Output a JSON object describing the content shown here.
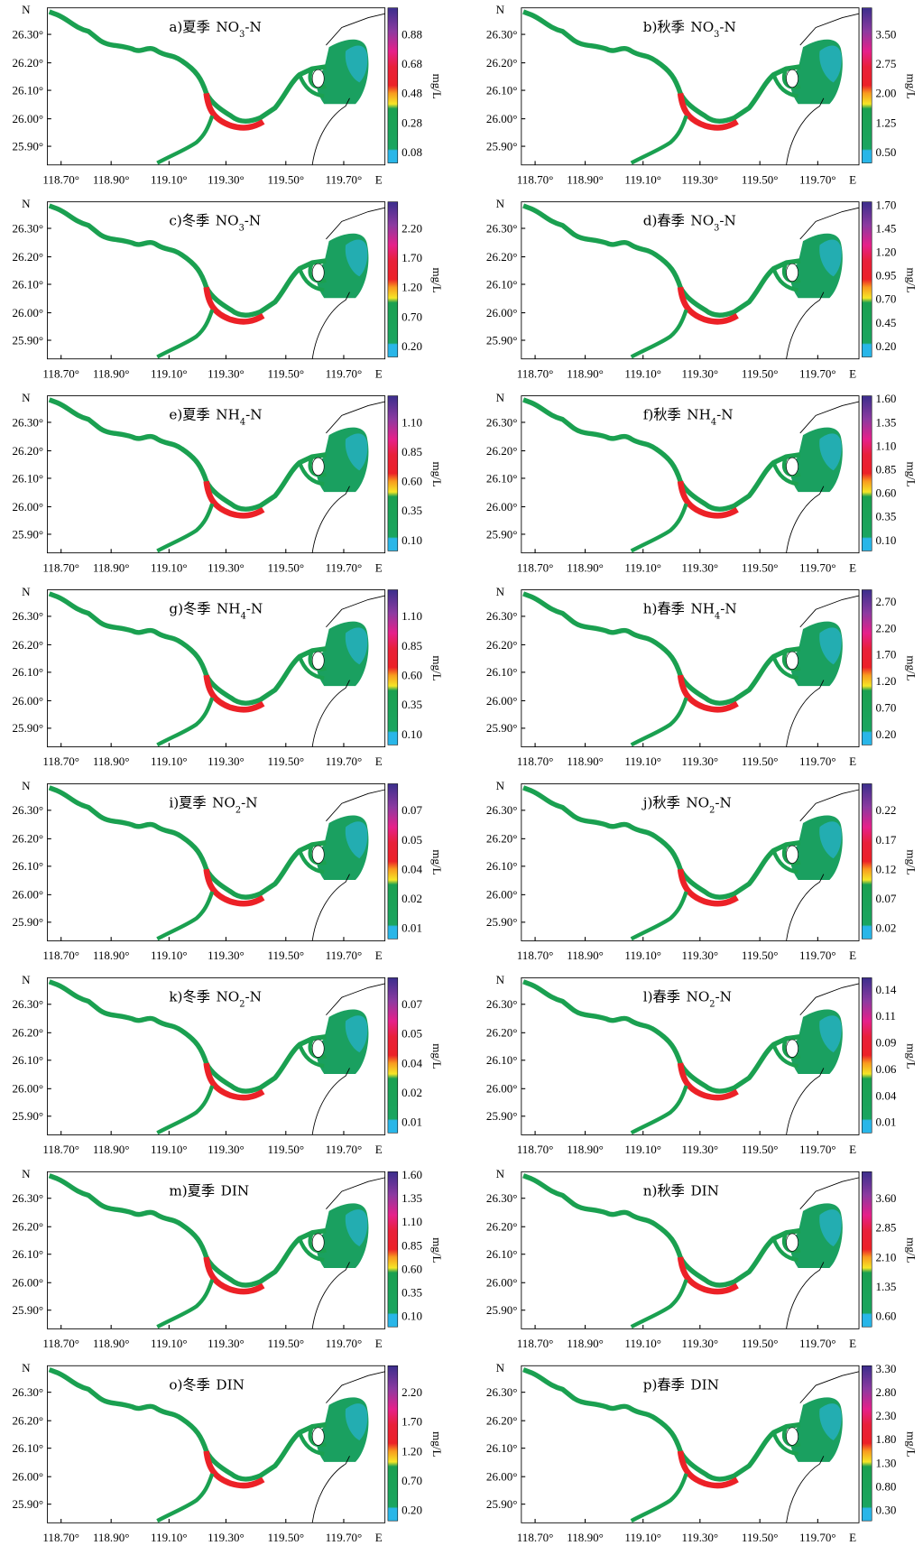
{
  "lat_labels": [
    "26.30°",
    "26.20°",
    "26.10°",
    "26.00°",
    "25.90°"
  ],
  "lon_labels": [
    "118.70°",
    "118.90°",
    "119.10°",
    "119.30°",
    "119.50°",
    "119.70°"
  ],
  "north": "N",
  "east": "E",
  "unit": "mg/L",
  "panels": [
    {
      "label": "a)夏季",
      "formula": "NO",
      "subscript": "3",
      "formula_suffix": "-N",
      "colorbar_ticks": [
        "0.08",
        "0.28",
        "0.48",
        "0.68",
        "0.88"
      ]
    },
    {
      "label": "b)秋季",
      "formula": "NO",
      "subscript": "3",
      "formula_suffix": "-N",
      "colorbar_ticks": [
        "0.50",
        "1.25",
        "2.00",
        "2.75",
        "3.50"
      ]
    },
    {
      "label": "c)冬季",
      "formula": "NO",
      "subscript": "3",
      "formula_suffix": "-N",
      "colorbar_ticks": [
        "0.20",
        "0.70",
        "1.20",
        "1.70",
        "2.20"
      ]
    },
    {
      "label": "d)春季",
      "formula": "NO",
      "subscript": "3",
      "formula_suffix": "-N",
      "colorbar_ticks": [
        "0.20",
        "0.45",
        "0.70",
        "0.95",
        "1.20",
        "1.45",
        "1.70"
      ]
    },
    {
      "label": "e)夏季",
      "formula": "NH",
      "subscript": "4",
      "formula_suffix": "-N",
      "colorbar_ticks": [
        "0.10",
        "0.35",
        "0.60",
        "0.85",
        "1.10"
      ]
    },
    {
      "label": "f)秋季",
      "formula": "NH",
      "subscript": "4",
      "formula_suffix": "-N",
      "colorbar_ticks": [
        "0.10",
        "0.35",
        "0.60",
        "0.85",
        "1.10",
        "1.35",
        "1.60"
      ]
    },
    {
      "label": "g)冬季",
      "formula": "NH",
      "subscript": "4",
      "formula_suffix": "-N",
      "colorbar_ticks": [
        "0.10",
        "0.35",
        "0.60",
        "0.85",
        "1.10"
      ]
    },
    {
      "label": "h)春季",
      "formula": "NH",
      "subscript": "4",
      "formula_suffix": "-N",
      "colorbar_ticks": [
        "0.20",
        "0.70",
        "1.20",
        "1.70",
        "2.20",
        "2.70"
      ]
    },
    {
      "label": "i)夏季",
      "formula": "NO",
      "subscript": "2",
      "formula_suffix": "-N",
      "colorbar_ticks": [
        "0.01",
        "0.02",
        "0.04",
        "0.05",
        "0.07"
      ]
    },
    {
      "label": "j)秋季",
      "formula": "NO",
      "subscript": "2",
      "formula_suffix": "-N",
      "colorbar_ticks": [
        "0.02",
        "0.07",
        "0.12",
        "0.17",
        "0.22"
      ]
    },
    {
      "label": "k)冬季",
      "formula": "NO",
      "subscript": "2",
      "formula_suffix": "-N",
      "colorbar_ticks": [
        "0.01",
        "0.02",
        "0.04",
        "0.05",
        "0.07"
      ]
    },
    {
      "label": "l)春季",
      "formula": "NO",
      "subscript": "2",
      "formula_suffix": "-N",
      "colorbar_ticks": [
        "0.01",
        "0.04",
        "0.06",
        "0.09",
        "0.11",
        "0.14"
      ]
    },
    {
      "label": "m)夏季",
      "formula": "DIN",
      "colorbar_ticks": [
        "0.10",
        "0.35",
        "0.60",
        "0.85",
        "1.10",
        "1.35",
        "1.60"
      ]
    },
    {
      "label": "n)秋季",
      "formula": "DIN",
      "colorbar_ticks": [
        "0.60",
        "1.35",
        "2.10",
        "2.85",
        "3.60"
      ]
    },
    {
      "label": "o)冬季",
      "formula": "DIN",
      "colorbar_ticks": [
        "0.20",
        "0.70",
        "1.20",
        "1.70",
        "2.20"
      ]
    },
    {
      "label": "p)春季",
      "formula": "DIN",
      "colorbar_ticks": [
        "0.30",
        "0.80",
        "1.30",
        "1.80",
        "2.30",
        "2.80",
        "3.30"
      ]
    }
  ]
}
